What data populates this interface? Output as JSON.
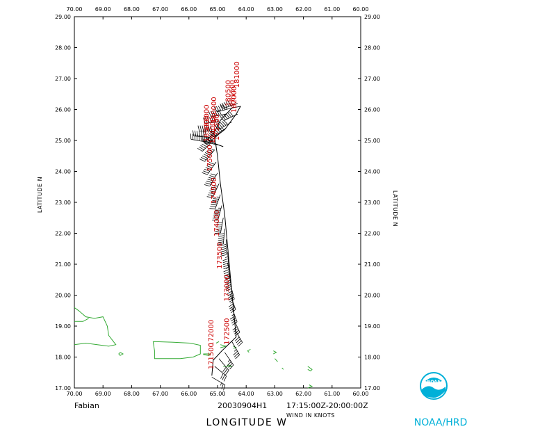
{
  "map": {
    "lon_ticks": [
      "70.00",
      "69.00",
      "68.00",
      "67.00",
      "66.00",
      "65.00",
      "64.00",
      "63.00",
      "62.00",
      "61.00",
      "60.00"
    ],
    "lat_ticks": [
      "17.00",
      "18.00",
      "19.00",
      "20.00",
      "21.00",
      "22.00",
      "23.00",
      "24.00",
      "25.00",
      "26.00",
      "27.00",
      "28.00",
      "29.00"
    ],
    "x_range": [
      70,
      60
    ],
    "y_range": [
      17,
      29
    ],
    "left_axis_label": "LATITUDE   N",
    "right_axis_label": "LATITUDE   N",
    "bottom_axis_label": "LONGITUDE   W",
    "storm_name": "Fabian",
    "flight_id": "20030904H1",
    "time_window": "17:15:00Z-20:00:00Z",
    "units_note": "WIND IN KNOTS",
    "logo_text": "NOAA",
    "agency": "NOAA/HRD",
    "colors": {
      "coast": "#33aa33",
      "track": "#000000",
      "time_label": "#cc0000",
      "agency": "#00b0d8"
    },
    "time_labels": [
      {
        "text": "171500",
        "lon": 65.15,
        "lat": 17.6
      },
      {
        "text": "172000",
        "lon": 65.15,
        "lat": 18.35
      },
      {
        "text": "172500",
        "lon": 64.6,
        "lat": 18.4
      },
      {
        "text": "173000",
        "lon": 64.6,
        "lat": 19.8
      },
      {
        "text": "173500",
        "lon": 64.85,
        "lat": 20.85
      },
      {
        "text": "174000",
        "lon": 64.95,
        "lat": 21.9
      },
      {
        "text": "174500",
        "lon": 65.05,
        "lat": 22.95
      },
      {
        "text": "175000",
        "lon": 65.2,
        "lat": 24.0
      },
      {
        "text": "175500",
        "lon": 64.95,
        "lat": 25.0
      },
      {
        "text": "180000",
        "lon": 65.05,
        "lat": 25.55
      },
      {
        "text": "180500",
        "lon": 64.55,
        "lat": 26.1
      },
      {
        "text": "181000",
        "lon": 64.25,
        "lat": 26.7
      },
      {
        "text": "181500",
        "lon": 64.4,
        "lat": 26.1
      },
      {
        "text": "182000",
        "lon": 64.35,
        "lat": 25.9
      },
      {
        "text": "183000",
        "lon": 65.3,
        "lat": 25.3
      },
      {
        "text": "184000",
        "lon": 65.1,
        "lat": 24.9
      },
      {
        "text": "185000",
        "lon": 65.3,
        "lat": 24.95
      }
    ],
    "track": [
      [
        65.2,
        17.4
      ],
      [
        65.15,
        17.9
      ],
      [
        64.85,
        18.2
      ],
      [
        64.35,
        18.65
      ],
      [
        64.45,
        19.6
      ],
      [
        64.55,
        20.6
      ],
      [
        64.65,
        21.6
      ],
      [
        64.75,
        22.6
      ],
      [
        64.9,
        23.6
      ],
      [
        65.0,
        24.5
      ],
      [
        65.1,
        25.1
      ],
      [
        64.75,
        25.35
      ],
      [
        64.35,
        25.85
      ],
      [
        64.2,
        26.1
      ],
      [
        64.5,
        26.05
      ],
      [
        64.9,
        25.65
      ],
      [
        65.15,
        25.2
      ],
      [
        65.35,
        25.05
      ],
      [
        65.1,
        24.9
      ],
      [
        64.8,
        24.8
      ]
    ],
    "barbs": [
      {
        "lon": 65.2,
        "lat": 17.35,
        "dir": 120,
        "spd": 25
      },
      {
        "lon": 65.1,
        "lat": 17.7,
        "dir": 130,
        "spd": 30
      },
      {
        "lon": 64.95,
        "lat": 17.95,
        "dir": 140,
        "spd": 30
      },
      {
        "lon": 64.75,
        "lat": 18.15,
        "dir": 145,
        "spd": 35
      },
      {
        "lon": 64.5,
        "lat": 18.5,
        "dir": 150,
        "spd": 35
      },
      {
        "lon": 64.4,
        "lat": 18.9,
        "dir": 150,
        "spd": 40
      },
      {
        "lon": 64.45,
        "lat": 19.25,
        "dir": 155,
        "spd": 40
      },
      {
        "lon": 64.5,
        "lat": 19.6,
        "dir": 160,
        "spd": 45
      },
      {
        "lon": 64.55,
        "lat": 20.0,
        "dir": 160,
        "spd": 45
      },
      {
        "lon": 64.55,
        "lat": 20.35,
        "dir": 165,
        "spd": 50
      },
      {
        "lon": 64.6,
        "lat": 20.7,
        "dir": 170,
        "spd": 50
      },
      {
        "lon": 64.65,
        "lat": 21.05,
        "dir": 170,
        "spd": 55
      },
      {
        "lon": 64.65,
        "lat": 21.4,
        "dir": 175,
        "spd": 55
      },
      {
        "lon": 64.7,
        "lat": 21.8,
        "dir": 180,
        "spd": 60
      },
      {
        "lon": 64.75,
        "lat": 22.15,
        "dir": 185,
        "spd": 60
      },
      {
        "lon": 64.8,
        "lat": 22.5,
        "dir": 190,
        "spd": 60
      },
      {
        "lon": 64.85,
        "lat": 22.9,
        "dir": 195,
        "spd": 65
      },
      {
        "lon": 64.9,
        "lat": 23.25,
        "dir": 200,
        "spd": 65
      },
      {
        "lon": 64.95,
        "lat": 23.6,
        "dir": 205,
        "spd": 70
      },
      {
        "lon": 65.0,
        "lat": 23.95,
        "dir": 210,
        "spd": 70
      },
      {
        "lon": 65.05,
        "lat": 24.3,
        "dir": 215,
        "spd": 70
      },
      {
        "lon": 65.1,
        "lat": 24.7,
        "dir": 220,
        "spd": 75
      },
      {
        "lon": 65.15,
        "lat": 25.0,
        "dir": 225,
        "spd": 75
      },
      {
        "lon": 64.95,
        "lat": 25.2,
        "dir": 230,
        "spd": 70
      },
      {
        "lon": 64.7,
        "lat": 25.4,
        "dir": 235,
        "spd": 65
      },
      {
        "lon": 64.5,
        "lat": 25.6,
        "dir": 240,
        "spd": 60
      },
      {
        "lon": 64.3,
        "lat": 25.85,
        "dir": 245,
        "spd": 60
      },
      {
        "lon": 64.3,
        "lat": 26.2,
        "dir": 250,
        "spd": 55
      },
      {
        "lon": 64.5,
        "lat": 26.05,
        "dir": 255,
        "spd": 55
      },
      {
        "lon": 64.7,
        "lat": 25.85,
        "dir": 260,
        "spd": 60
      },
      {
        "lon": 64.9,
        "lat": 25.6,
        "dir": 265,
        "spd": 65
      },
      {
        "lon": 65.1,
        "lat": 25.3,
        "dir": 270,
        "spd": 70
      },
      {
        "lon": 65.3,
        "lat": 25.1,
        "dir": 275,
        "spd": 70
      },
      {
        "lon": 65.4,
        "lat": 24.95,
        "dir": 280,
        "spd": 65
      },
      {
        "lon": 65.0,
        "lat": 24.85,
        "dir": 285,
        "spd": 60
      }
    ],
    "coastlines": [
      [
        [
          70,
          19.6
        ],
        [
          69.85,
          19.5
        ],
        [
          69.6,
          19.3
        ],
        [
          69.3,
          19.25
        ],
        [
          69.0,
          19.3
        ],
        [
          68.85,
          19.0
        ],
        [
          68.8,
          18.7
        ],
        [
          68.55,
          18.4
        ],
        [
          68.8,
          18.35
        ],
        [
          69.2,
          18.4
        ],
        [
          69.6,
          18.45
        ],
        [
          70,
          18.4
        ]
      ],
      [
        [
          70,
          19.15
        ],
        [
          69.7,
          19.15
        ],
        [
          69.5,
          19.25
        ]
      ],
      [
        [
          67.25,
          18.5
        ],
        [
          66.6,
          18.48
        ],
        [
          65.95,
          18.45
        ],
        [
          65.6,
          18.38
        ],
        [
          65.6,
          18.1
        ],
        [
          65.85,
          18.0
        ],
        [
          66.3,
          17.95
        ],
        [
          66.85,
          17.95
        ],
        [
          67.2,
          17.95
        ],
        [
          67.2,
          18.2
        ],
        [
          67.25,
          18.5
        ]
      ],
      [
        [
          68.4,
          18.15
        ],
        [
          68.3,
          18.1
        ],
        [
          68.4,
          18.05
        ],
        [
          68.45,
          18.1
        ],
        [
          68.4,
          18.15
        ]
      ],
      [
        [
          65.5,
          18.1
        ],
        [
          65.25,
          18.1
        ],
        [
          65.3,
          18.05
        ],
        [
          65.5,
          18.08
        ]
      ],
      [
        [
          64.9,
          18.4
        ],
        [
          64.7,
          18.35
        ],
        [
          64.9,
          18.3
        ]
      ],
      [
        [
          64.45,
          18.35
        ],
        [
          64.35,
          18.3
        ],
        [
          64.45,
          18.28
        ]
      ],
      [
        [
          63.85,
          18.25
        ],
        [
          63.95,
          18.2
        ],
        [
          63.9,
          18.15
        ]
      ],
      [
        [
          63.05,
          18.2
        ],
        [
          62.95,
          18.15
        ],
        [
          63.05,
          18.1
        ]
      ],
      [
        [
          63.0,
          17.95
        ],
        [
          62.9,
          17.85
        ]
      ],
      [
        [
          62.75,
          17.65
        ],
        [
          62.7,
          17.6
        ]
      ],
      [
        [
          61.85,
          17.7
        ],
        [
          61.7,
          17.6
        ],
        [
          61.75,
          17.55
        ],
        [
          61.85,
          17.6
        ]
      ],
      [
        [
          61.8,
          17.1
        ],
        [
          61.7,
          17.05
        ],
        [
          61.85,
          17.0
        ]
      ],
      [
        [
          64.8,
          17.7
        ],
        [
          64.5,
          17.7
        ],
        [
          64.65,
          17.75
        ]
      ],
      [
        [
          65.05,
          18.45
        ],
        [
          64.95,
          18.5
        ]
      ]
    ]
  }
}
